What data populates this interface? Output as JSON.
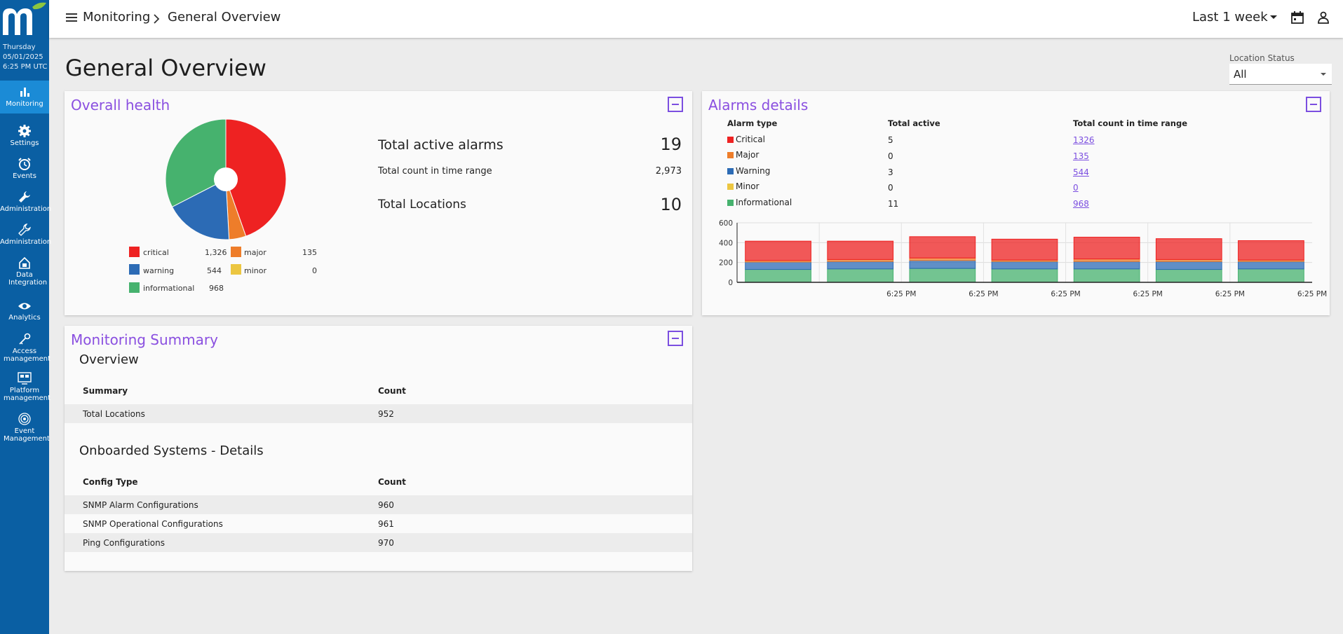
{
  "sidebar": {
    "datetime": {
      "day": "Thursday",
      "date": "05/01/2025",
      "time": "6:25 PM UTC"
    },
    "items": [
      {
        "label": "Monitoring",
        "icon": "bar-chart-icon"
      },
      {
        "label": "Settings",
        "icon": "gear-icon"
      },
      {
        "label": "Events",
        "icon": "alarm-clock-icon"
      },
      {
        "label": "Administration",
        "icon": "wrench-icon"
      },
      {
        "label": "Administration",
        "icon": "wrench-outline-icon"
      },
      {
        "label": "Data Integration",
        "icon": "house-data-icon"
      },
      {
        "label": "Analytics",
        "icon": "eye-icon"
      },
      {
        "label": "Access management",
        "icon": "key-icon"
      },
      {
        "label": "Platform management",
        "icon": "platform-icon"
      },
      {
        "label": "Event Management",
        "icon": "target-icon"
      }
    ]
  },
  "header": {
    "breadcrumb": [
      "Monitoring",
      "General Overview"
    ],
    "time_range": "Last 1 week"
  },
  "page": {
    "title": "General Overview",
    "location_status_label": "Location Status",
    "location_status_value": "All"
  },
  "colors": {
    "critical": "#ee2222",
    "major": "#ee7d2a",
    "warning": "#2c6bb5",
    "minor": "#ecc641",
    "informational": "#46b26e",
    "accent": "#7b4ee0",
    "sidebar": "#0a5fa3"
  },
  "overall_health": {
    "title": "Overall health",
    "legend": [
      {
        "name": "critical",
        "value": "1,326"
      },
      {
        "name": "major",
        "value": "135"
      },
      {
        "name": "warning",
        "value": "544"
      },
      {
        "name": "minor",
        "value": "0"
      },
      {
        "name": "informational",
        "value": "968"
      }
    ],
    "total_active_alarms_label": "Total active alarms",
    "total_active_alarms": "19",
    "total_count_label": "Total count in time range",
    "total_count": "2,973",
    "total_locations_label": "Total Locations",
    "total_locations": "10"
  },
  "alarms_details": {
    "title": "Alarms details",
    "headers": [
      "Alarm type",
      "Total active",
      "Total count in time range"
    ],
    "rows": [
      {
        "type": "Critical",
        "active": "5",
        "count": "1326"
      },
      {
        "type": "Major",
        "active": "0",
        "count": "135"
      },
      {
        "type": "Warning",
        "active": "3",
        "count": "544"
      },
      {
        "type": "Minor",
        "active": "0",
        "count": "0"
      },
      {
        "type": "Informational",
        "active": "11",
        "count": "968"
      }
    ]
  },
  "chart_data": {
    "type": "bar",
    "stacked": true,
    "categories": [
      "",
      "6:25 PM",
      "6:25 PM",
      "6:25 PM",
      "6:25 PM",
      "6:25 PM",
      "6:25 PM"
    ],
    "ylim": [
      0,
      600
    ],
    "yticks": [
      0,
      200,
      400,
      600
    ],
    "series": [
      {
        "name": "informational",
        "values": [
          130,
          135,
          140,
          135,
          135,
          130,
          135
        ]
      },
      {
        "name": "warning",
        "values": [
          75,
          75,
          80,
          75,
          75,
          80,
          75
        ]
      },
      {
        "name": "minor",
        "values": [
          0,
          0,
          0,
          0,
          0,
          0,
          0
        ]
      },
      {
        "name": "major",
        "values": [
          15,
          20,
          25,
          15,
          25,
          20,
          15
        ]
      },
      {
        "name": "critical",
        "values": [
          195,
          185,
          215,
          210,
          220,
          210,
          195
        ]
      }
    ],
    "grid": true
  },
  "monitoring_summary": {
    "title": "Monitoring Summary",
    "overview_title": "Overview",
    "overview_headers": [
      "Summary",
      "Count"
    ],
    "overview_rows": [
      {
        "name": "Total Locations",
        "count": "952"
      }
    ],
    "onboarded_title": "Onboarded Systems - Details",
    "onboarded_headers": [
      "Config Type",
      "Count"
    ],
    "onboarded_rows": [
      {
        "name": "SNMP Alarm Configurations",
        "count": "960"
      },
      {
        "name": "SNMP Operational Configurations",
        "count": "961"
      },
      {
        "name": "Ping Configurations",
        "count": "970"
      }
    ]
  }
}
